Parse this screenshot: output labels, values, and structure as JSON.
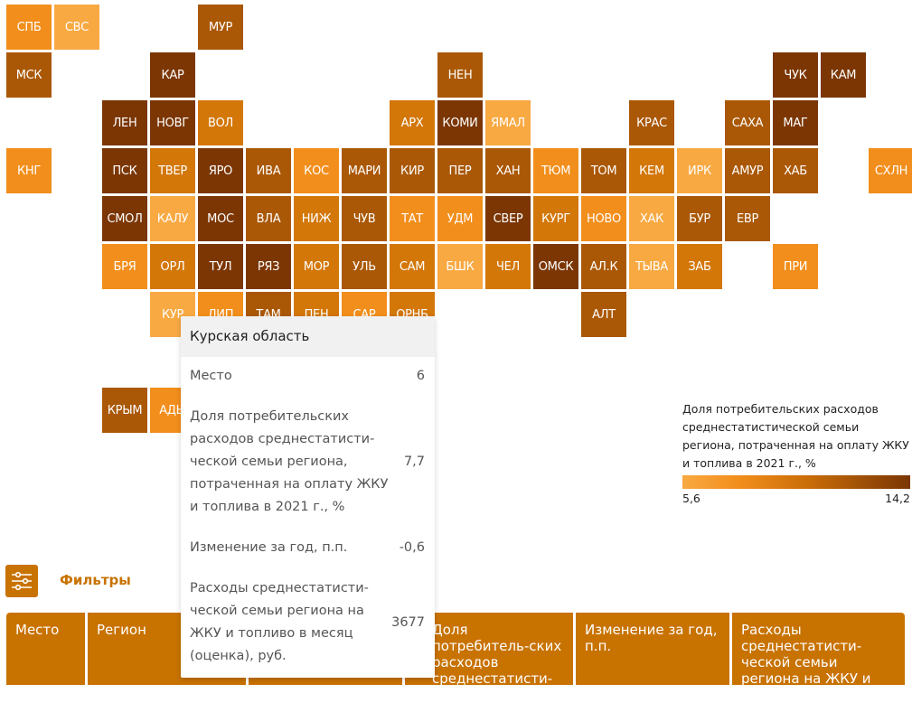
{
  "map": {
    "tiles": [
      "СПБ",
      "СВС",
      "МУР",
      "МСК",
      "КАР",
      "НЕН",
      "ЧУК",
      "КАМ",
      "ЛЕН",
      "НОВГ",
      "ВОЛ",
      "АРХ",
      "КОМИ",
      "ЯМАЛ",
      "КРАС",
      "САХА",
      "МАГ",
      "КНГ",
      "ПСК",
      "ТВЕР",
      "ЯРО",
      "ИВА",
      "КОС",
      "МАРИ",
      "КИР",
      "ПЕР",
      "ХАН",
      "ТЮМ",
      "ТОМ",
      "КЕМ",
      "ИРК",
      "АМУР",
      "ХАБ",
      "СХЛН",
      "СМОЛ",
      "КАЛУ",
      "МОС",
      "ВЛА",
      "НИЖ",
      "ЧУВ",
      "ТАТ",
      "УДМ",
      "СВЕР",
      "КУРГ",
      "НОВО",
      "ХАК",
      "БУР",
      "ЕВР",
      "БРЯ",
      "ОРЛ",
      "ТУЛ",
      "РЯЗ",
      "МОР",
      "УЛЬ",
      "САМ",
      "БШК",
      "ЧЕЛ",
      "ОМСК",
      "АЛ.К",
      "ТЫВА",
      "ЗАБ",
      "ПРИ",
      "КУР",
      "ЛИП",
      "ТАМ",
      "ПЕН",
      "САР",
      "ОРНБ",
      "АЛТ",
      "КРЫМ",
      "АДЫ"
    ]
  },
  "chart_data": {
    "type": "heatmap",
    "title": "Доля потребительских расходов среднестатистической семьи региона, потраченная на оплату ЖКУ и топлива в 2021 г., %",
    "color_range": [
      5.6,
      14.2
    ],
    "colors": [
      "#f8a942",
      "#7b3604"
    ]
  },
  "legend": {
    "title": "Доля потребительских расходов среднестатистической семьи региона, потраченная на оплату ЖКУ и топлива в 2021 г., %",
    "min": "5,6",
    "max": "14,2"
  },
  "tooltip": {
    "region": "Курская область",
    "rows": [
      {
        "label": "Место",
        "value": "6"
      },
      {
        "label": "Доля потребительских расходов среднестатисти-ческой семьи региона, потраченная на оплату ЖКУ и топлива в 2021 г., %",
        "value": "7,7"
      },
      {
        "label": "Изменение за год, п.п.",
        "value": "-0,6"
      },
      {
        "label": "Расходы среднестатисти-ческой семьи региона на ЖКУ и топливо в месяц (оценка), руб.",
        "value": "3677"
      }
    ]
  },
  "filters": {
    "label": "Фильтры"
  },
  "table": {
    "headers": [
      "Место",
      "Регион",
      "",
      "Доля потребитель-ских расходов среднестатисти-ческой семьи",
      "Изменение за год, п.п.",
      "Расходы среднестатисти-ческой семьи региона на ЖКУ и"
    ]
  }
}
